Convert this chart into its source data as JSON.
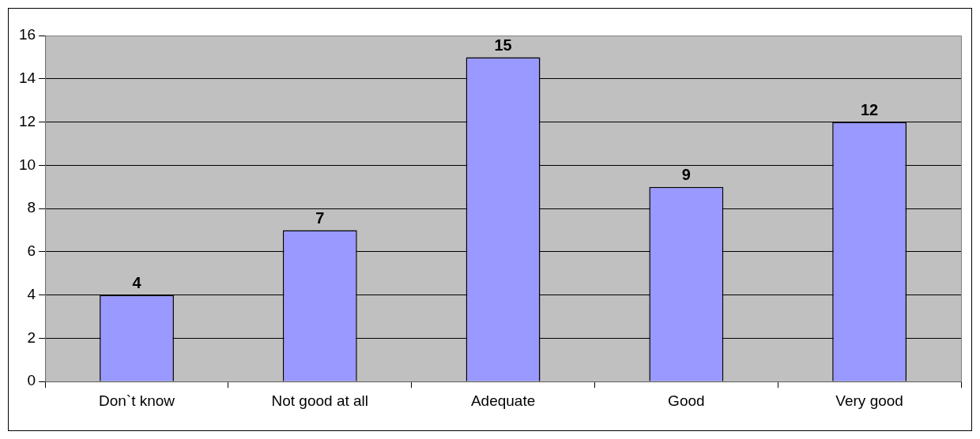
{
  "chart_data": {
    "type": "bar",
    "categories": [
      "Don`t know",
      "Not good at all",
      "Adequate",
      "Good",
      "Very good"
    ],
    "values": [
      4,
      7,
      15,
      9,
      12
    ],
    "color": "#9999ff",
    "ylim": [
      0,
      16
    ],
    "yticks": [
      0,
      2,
      4,
      6,
      8,
      10,
      12,
      14,
      16
    ],
    "grid": "y",
    "data_labels": true,
    "legend": false
  }
}
